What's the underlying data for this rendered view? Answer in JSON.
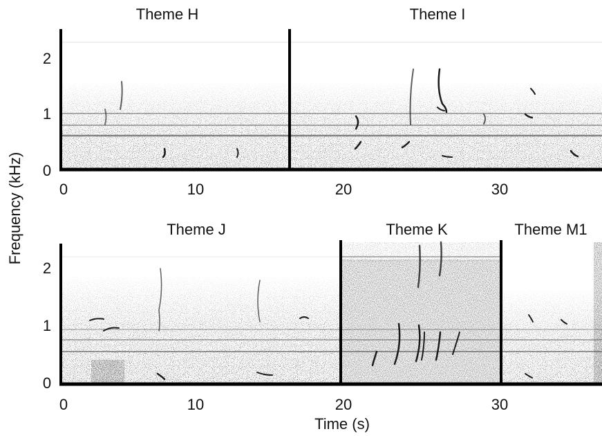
{
  "figure": {
    "ylabel": "Frequency (kHz)",
    "xlabel": "Time (s)",
    "colors": {
      "ink": "#111111",
      "spectrogram_base": "#ffffff",
      "noise": "#8a8a8a"
    },
    "panels": [
      {
        "id": "top",
        "x_ticks": [
          "0",
          "10",
          "20",
          "30"
        ],
        "y_ticks": [
          "0",
          "1",
          "2"
        ],
        "themes": [
          "Theme H",
          "Theme I"
        ]
      },
      {
        "id": "bottom",
        "x_ticks": [
          "0",
          "10",
          "20",
          "30"
        ],
        "y_ticks": [
          "0",
          "1",
          "2"
        ],
        "themes": [
          "Theme J",
          "Theme K",
          "Theme M1"
        ]
      }
    ]
  }
}
